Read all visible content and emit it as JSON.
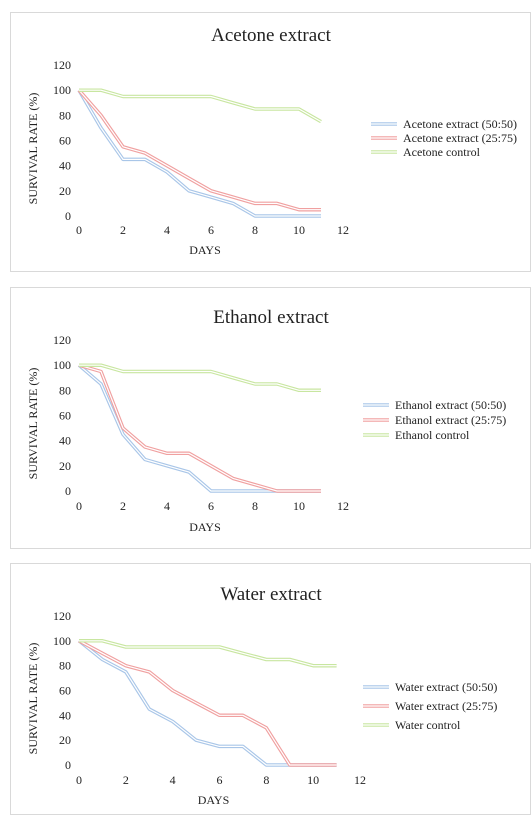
{
  "chart_data": [
    {
      "type": "line",
      "title": "Acetone extract",
      "xlabel": "DAYS",
      "ylabel": "SURVIVAL RATE (%)",
      "xlim": [
        0,
        12
      ],
      "ylim": [
        0,
        120
      ],
      "x_ticks": [
        0,
        2,
        4,
        6,
        8,
        10,
        12
      ],
      "y_ticks": [
        0,
        20,
        40,
        60,
        80,
        100,
        120
      ],
      "grid": false,
      "legend_position": "right",
      "x": [
        0,
        1,
        2,
        3,
        4,
        5,
        6,
        7,
        8,
        9,
        10,
        11
      ],
      "series": [
        {
          "name": "Acetone extract (50:50)",
          "color": "#a9c6e8",
          "values": [
            100,
            70,
            45,
            45,
            35,
            20,
            15,
            10,
            0,
            0,
            0,
            0
          ]
        },
        {
          "name": "Acetone extract (25:75)",
          "color": "#f0a0a0",
          "values": [
            100,
            80,
            55,
            50,
            40,
            30,
            20,
            15,
            10,
            10,
            5,
            5
          ]
        },
        {
          "name": "Acetone control",
          "color": "#c8e6a0",
          "values": [
            100,
            100,
            95,
            95,
            95,
            95,
            95,
            90,
            85,
            85,
            85,
            75
          ]
        }
      ]
    },
    {
      "type": "line",
      "title": "Ethanol extract",
      "xlabel": "DAYS",
      "ylabel": "SURVIVAL RATE (%)",
      "xlim": [
        0,
        12
      ],
      "ylim": [
        0,
        120
      ],
      "x_ticks": [
        0,
        2,
        4,
        6,
        8,
        10,
        12
      ],
      "y_ticks": [
        0,
        20,
        40,
        60,
        80,
        100,
        120
      ],
      "grid": false,
      "legend_position": "right",
      "x": [
        0,
        1,
        2,
        3,
        4,
        5,
        6,
        7,
        8,
        9,
        10,
        11
      ],
      "series": [
        {
          "name": "Ethanol extract (50:50)",
          "color": "#a9c6e8",
          "values": [
            100,
            85,
            45,
            25,
            20,
            15,
            0,
            0,
            0,
            0,
            0,
            0
          ]
        },
        {
          "name": "Ethanol extract (25:75)",
          "color": "#f0a0a0",
          "values": [
            100,
            95,
            50,
            35,
            30,
            30,
            20,
            10,
            5,
            0,
            0,
            0
          ]
        },
        {
          "name": "Ethanol control",
          "color": "#c8e6a0",
          "values": [
            100,
            100,
            95,
            95,
            95,
            95,
            95,
            90,
            85,
            85,
            80,
            80
          ]
        }
      ]
    },
    {
      "type": "line",
      "title": "Water extract",
      "xlabel": "DAYS",
      "ylabel": "SURVIVAL RATE (%)",
      "xlim": [
        0,
        12
      ],
      "ylim": [
        0,
        120
      ],
      "x_ticks": [
        0,
        2,
        4,
        6,
        8,
        10,
        12
      ],
      "y_ticks": [
        0,
        20,
        40,
        60,
        80,
        100,
        120
      ],
      "grid": false,
      "legend_position": "right",
      "x": [
        0,
        1,
        2,
        3,
        4,
        5,
        6,
        7,
        8,
        9,
        10,
        11
      ],
      "series": [
        {
          "name": "Water extract (50:50)",
          "color": "#a9c6e8",
          "values": [
            100,
            85,
            75,
            45,
            35,
            20,
            15,
            15,
            0,
            0,
            0,
            0
          ]
        },
        {
          "name": "Water extract (25:75)",
          "color": "#f0a0a0",
          "values": [
            100,
            90,
            80,
            75,
            60,
            50,
            40,
            40,
            30,
            0,
            0,
            0
          ]
        },
        {
          "name": "Water control",
          "color": "#c8e6a0",
          "values": [
            100,
            100,
            95,
            95,
            95,
            95,
            95,
            90,
            85,
            85,
            80,
            80
          ]
        }
      ]
    }
  ]
}
